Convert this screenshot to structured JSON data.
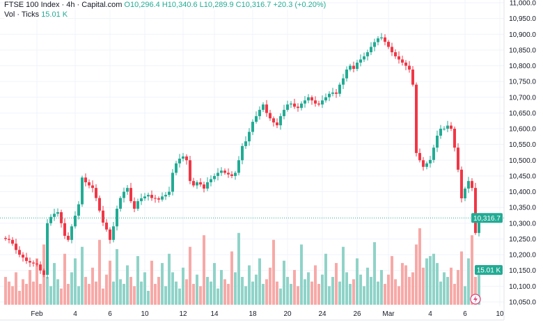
{
  "header": {
    "symbol": "FTSE 100 Index · 4h · Capital.com",
    "ohlc": "O10,296.4 H10,340.6 L10,289.9 C10,316.7 +20.3 (+0.20%)",
    "vol_label": "Vol · Ticks",
    "vol_value": "15.01 K"
  },
  "colors": {
    "up": "#22ab94",
    "down": "#f23645",
    "vol_up": "#8fd3c8",
    "vol_down": "#f7a9a7",
    "grid": "#f0f3fa"
  },
  "chart_data": {
    "type": "candlestick",
    "title": "FTSE 100 Index · 4h · Capital.com",
    "ylim": [
      10030,
      11010
    ],
    "yticks": [
      11000,
      10950,
      10900,
      10850,
      10800,
      10750,
      10700,
      10650,
      10600,
      10550,
      10500,
      10450,
      10400,
      10350,
      10300,
      10250,
      10200,
      10150,
      10100,
      10050
    ],
    "ytick_labels": [
      "11,000.0",
      "10,950.0",
      "10,900.0",
      "10,850.0",
      "10,800.0",
      "10,750.0",
      "10,700.0",
      "10,650.0",
      "10,600.0",
      "10,550.0",
      "10,500.0",
      "10,450.0",
      "10,400.0",
      "10,350.0",
      "10,300.0",
      "10,250.0",
      "10,200.0",
      "10,150.0",
      "10,100.0",
      "10,050.0"
    ],
    "xticks": [
      {
        "label": "Feb",
        "index": 9
      },
      {
        "label": "4",
        "index": 20
      },
      {
        "label": "6",
        "index": 30
      },
      {
        "label": "10",
        "index": 40
      },
      {
        "label": "12",
        "index": 51
      },
      {
        "label": "14",
        "index": 60
      },
      {
        "label": "18",
        "index": 71
      },
      {
        "label": "20",
        "index": 81
      },
      {
        "label": "24",
        "index": 91
      },
      {
        "label": "26",
        "index": 101
      },
      {
        "label": "Mar",
        "index": 110
      },
      {
        "label": "4",
        "index": 122
      },
      {
        "label": "6",
        "index": 132
      },
      {
        "label": "10",
        "index": 142
      }
    ],
    "closes": [
      10250,
      10247,
      10235,
      10215,
      10200,
      10191,
      10180,
      10175,
      10172,
      10169,
      10150,
      10136,
      10300,
      10320,
      10330,
      10335,
      10300,
      10260,
      10247,
      10290,
      10324,
      10360,
      10445,
      10430,
      10420,
      10412,
      10380,
      10340,
      10302,
      10280,
      10247,
      10290,
      10346,
      10380,
      10400,
      10412,
      10370,
      10346,
      10370,
      10379,
      10385,
      10390,
      10380,
      10379,
      10375,
      10385,
      10390,
      10400,
      10460,
      10490,
      10505,
      10512,
      10500,
      10434,
      10420,
      10430,
      10423,
      10410,
      10430,
      10440,
      10450,
      10460,
      10467,
      10460,
      10455,
      10450,
      10460,
      10500,
      10545,
      10560,
      10590,
      10622,
      10640,
      10660,
      10677,
      10650,
      10633,
      10620,
      10611,
      10640,
      10660,
      10677,
      10680,
      10670,
      10666,
      10680,
      10690,
      10700,
      10690,
      10680,
      10677,
      10690,
      10700,
      10711,
      10715,
      10711,
      10740,
      10760,
      10788,
      10800,
      10790,
      10810,
      10820,
      10830,
      10843,
      10860,
      10875,
      10887,
      10890,
      10876,
      10860,
      10843,
      10830,
      10820,
      10810,
      10800,
      10788,
      10740,
      10523,
      10500,
      10479,
      10490,
      10501,
      10540,
      10578,
      10600,
      10600,
      10610,
      10600,
      10540,
      10470,
      10379,
      10410,
      10434,
      10412,
      10269,
      10316.7
    ],
    "volumes_k": [
      12,
      10,
      8,
      14,
      6,
      11,
      9,
      15,
      10,
      20,
      9,
      26,
      12,
      8,
      18,
      11,
      7,
      22,
      9,
      14,
      20,
      8,
      25,
      12,
      9,
      16,
      10,
      28,
      7,
      13,
      19,
      10,
      24,
      11,
      9,
      17,
      12,
      8,
      21,
      10,
      14,
      6,
      19,
      9,
      12,
      18,
      8,
      22,
      14,
      10,
      7,
      16,
      11,
      25,
      9,
      13,
      8,
      30,
      12,
      10,
      18,
      7,
      15,
      11,
      9,
      23,
      14,
      31,
      12,
      8,
      17,
      10,
      13,
      20,
      9,
      11,
      16,
      28,
      10,
      7,
      19,
      12,
      9,
      15,
      8,
      26,
      11,
      14,
      10,
      17,
      9,
      13,
      22,
      8,
      12,
      18,
      10,
      25,
      14,
      9,
      11,
      20,
      13,
      8,
      16,
      12,
      27,
      10,
      15,
      9,
      13,
      21,
      11,
      8,
      18,
      17,
      12,
      14,
      26,
      33,
      16,
      20,
      21,
      22,
      18,
      10,
      14,
      12,
      16,
      9,
      15,
      23,
      8,
      20,
      30,
      12,
      15.01
    ],
    "last_price_label": "10,316.7",
    "last_volume_label": "15.01 K"
  }
}
